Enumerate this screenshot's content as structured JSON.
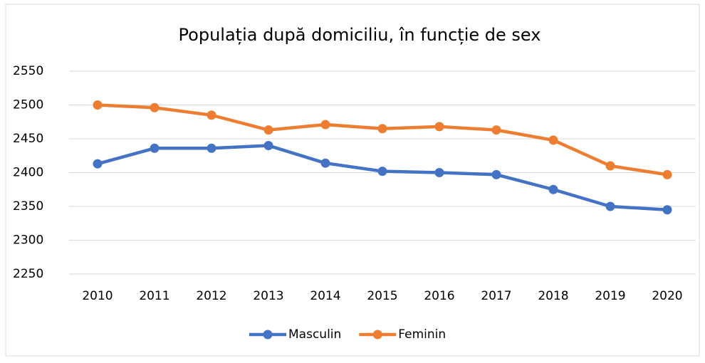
{
  "chart_data": {
    "type": "line",
    "title": "Populația după domiciliu, în funcție de sex",
    "categories": [
      "2010",
      "2011",
      "2012",
      "2013",
      "2014",
      "2015",
      "2016",
      "2017",
      "2018",
      "2019",
      "2020"
    ],
    "series": [
      {
        "name": "Masculin",
        "color": "#4472c4",
        "values": [
          2413,
          2436,
          2436,
          2440,
          2414,
          2402,
          2400,
          2397,
          2375,
          2350,
          2345
        ]
      },
      {
        "name": "Feminin",
        "color": "#ed7d31",
        "values": [
          2500,
          2496,
          2485,
          2463,
          2471,
          2465,
          2468,
          2463,
          2448,
          2410,
          2397
        ]
      }
    ],
    "ylim": [
      2250,
      2550
    ],
    "yticks": [
      2250,
      2300,
      2350,
      2400,
      2450,
      2500,
      2550
    ],
    "grid": true,
    "legend": "bottom"
  }
}
